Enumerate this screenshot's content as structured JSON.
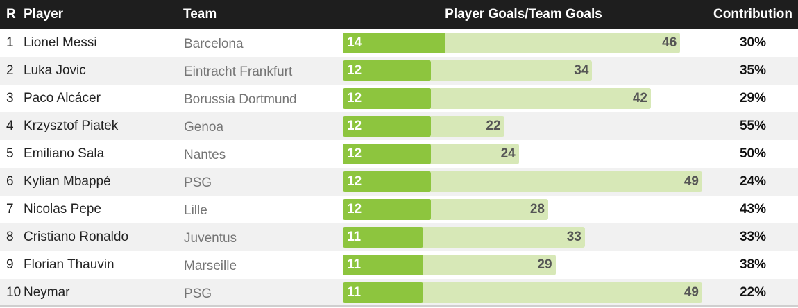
{
  "header": {
    "rank": "R",
    "player": "Player",
    "team": "Team",
    "goals": "Player Goals/Team Goals",
    "contribution": "Contribution"
  },
  "colors": {
    "player_bar": "#8dc53e",
    "team_bar": "#d7e8b7",
    "header_bg": "#1e1e1e"
  },
  "chart_data": {
    "type": "bar",
    "title": "",
    "series": [
      {
        "name": "Player Goals",
        "values": [
          14,
          12,
          12,
          12,
          12,
          12,
          12,
          11,
          11,
          11
        ]
      },
      {
        "name": "Team Goals",
        "values": [
          46,
          34,
          42,
          22,
          24,
          49,
          28,
          33,
          29,
          49
        ]
      }
    ],
    "ylim": [
      0,
      49
    ],
    "rows": [
      {
        "rank": "1",
        "player": "Lionel Messi",
        "team": "Barcelona",
        "player_goals": 14,
        "team_goals": 46,
        "contribution": "30%"
      },
      {
        "rank": "2",
        "player": "Luka Jovic",
        "team": "Eintracht Frankfurt",
        "player_goals": 12,
        "team_goals": 34,
        "contribution": "35%"
      },
      {
        "rank": "3",
        "player": "Paco Alcácer",
        "team": "Borussia Dortmund",
        "player_goals": 12,
        "team_goals": 42,
        "contribution": "29%"
      },
      {
        "rank": "4",
        "player": "Krzysztof Piatek",
        "team": "Genoa",
        "player_goals": 12,
        "team_goals": 22,
        "contribution": "55%"
      },
      {
        "rank": "5",
        "player": "Emiliano Sala",
        "team": "Nantes",
        "player_goals": 12,
        "team_goals": 24,
        "contribution": "50%"
      },
      {
        "rank": "6",
        "player": "Kylian Mbappé",
        "team": "PSG",
        "player_goals": 12,
        "team_goals": 49,
        "contribution": "24%"
      },
      {
        "rank": "7",
        "player": "Nicolas Pepe",
        "team": "Lille",
        "player_goals": 12,
        "team_goals": 28,
        "contribution": "43%"
      },
      {
        "rank": "8",
        "player": "Cristiano Ronaldo",
        "team": "Juventus",
        "player_goals": 11,
        "team_goals": 33,
        "contribution": "33%"
      },
      {
        "rank": "9",
        "player": "Florian Thauvin",
        "team": "Marseille",
        "player_goals": 11,
        "team_goals": 29,
        "contribution": "38%"
      },
      {
        "rank": "10",
        "player": "Neymar",
        "team": "PSG",
        "player_goals": 11,
        "team_goals": 49,
        "contribution": "22%"
      }
    ]
  }
}
